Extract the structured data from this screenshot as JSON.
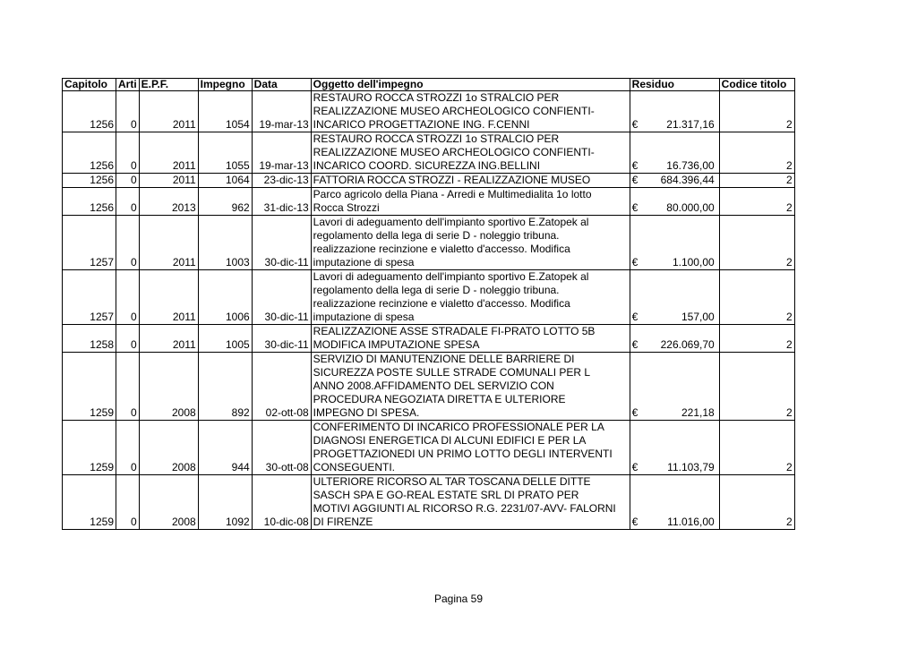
{
  "headers": [
    "Capitolo",
    "Arti",
    "E.P.F.",
    "Impegno",
    "Data",
    "Oggetto dell'impegno",
    "Residuo",
    "Codice titolo"
  ],
  "currency_symbol": "€",
  "rows": [
    {
      "capitolo": "1256",
      "arti": "0",
      "epf": "2011",
      "impegno": "1054",
      "data": "19-mar-13",
      "oggetto": [
        "RESTAURO ROCCA STROZZI 1o STRALCIO PER",
        "REALIZZAZIONE MUSEO ARCHEOLOGICO CONFIENTI-",
        "INCARICO PROGETTAZIONE ING. F.CENNI"
      ],
      "residuo": "21.317,16",
      "codice": "2"
    },
    {
      "capitolo": "1256",
      "arti": "0",
      "epf": "2011",
      "impegno": "1055",
      "data": "19-mar-13",
      "oggetto": [
        "RESTAURO ROCCA STROZZI 1o STRALCIO PER",
        "REALIZZAZIONE MUSEO ARCHEOLOGICO CONFIENTI-",
        "INCARICO COORD. SICUREZZA ING.BELLINI"
      ],
      "residuo": "16.736,00",
      "codice": "2"
    },
    {
      "capitolo": "1256",
      "arti": "0",
      "epf": "2011",
      "impegno": "1064",
      "data": "23-dic-13",
      "oggetto": [
        "FATTORIA ROCCA STROZZI - REALIZZAZIONE MUSEO"
      ],
      "residuo": "684.396,44",
      "codice": "2"
    },
    {
      "capitolo": "1256",
      "arti": "0",
      "epf": "2013",
      "impegno": "962",
      "data": "31-dic-13",
      "oggetto": [
        "Parco agricolo della Piana - Arredi e Multimedialita 1o lotto",
        "Rocca Strozzi"
      ],
      "residuo": "80.000,00",
      "codice": "2"
    },
    {
      "capitolo": "1257",
      "arti": "0",
      "epf": "2011",
      "impegno": "1003",
      "data": "30-dic-11",
      "oggetto": [
        "Lavori di adeguamento dell'impianto sportivo E.Zatopek al",
        "regolamento della lega di serie D - noleggio tribuna.",
        "realizzazione recinzione e vialetto d'accesso. Modifica",
        "imputazione di spesa"
      ],
      "residuo": "1.100,00",
      "codice": "2"
    },
    {
      "capitolo": "1257",
      "arti": "0",
      "epf": "2011",
      "impegno": "1006",
      "data": "30-dic-11",
      "oggetto": [
        "Lavori di adeguamento dell'impianto sportivo E.Zatopek al",
        "regolamento della lega di serie D - noleggio tribuna.",
        "realizzazione recinzione e vialetto d'accesso. Modifica",
        "imputazione di spesa"
      ],
      "residuo": "157,00",
      "codice": "2"
    },
    {
      "capitolo": "1258",
      "arti": "0",
      "epf": "2011",
      "impegno": "1005",
      "data": "30-dic-11",
      "oggetto": [
        "REALIZZAZIONE ASSE STRADALE FI-PRATO LOTTO 5B",
        "MODIFICA IMPUTAZIONE SPESA"
      ],
      "residuo": "226.069,70",
      "codice": "2"
    },
    {
      "capitolo": "1259",
      "arti": "0",
      "epf": "2008",
      "impegno": "892",
      "data": "02-ott-08",
      "oggetto": [
        "SERVIZIO DI MANUTENZIONE DELLE BARRIERE DI",
        "SICUREZZA POSTE SULLE STRADE COMUNALI PER L",
        "ANNO 2008.AFFIDAMENTO DEL SERVIZIO CON",
        "PROCEDURA NEGOZIATA DIRETTA E ULTERIORE",
        "IMPEGNO DI SPESA."
      ],
      "residuo": "221,18",
      "codice": "2"
    },
    {
      "capitolo": "1259",
      "arti": "0",
      "epf": "2008",
      "impegno": "944",
      "data": "30-ott-08",
      "oggetto": [
        "CONFERIMENTO DI INCARICO PROFESSIONALE PER LA",
        "DIAGNOSI ENERGETICA DI ALCUNI EDIFICI E PER LA",
        "PROGETTAZIONEDI UN PRIMO LOTTO DEGLI INTERVENTI",
        "CONSEGUENTI."
      ],
      "residuo": "11.103,79",
      "codice": "2"
    },
    {
      "capitolo": "1259",
      "arti": "0",
      "epf": "2008",
      "impegno": "1092",
      "data": "10-dic-08",
      "oggetto": [
        "ULTERIORE RICORSO AL TAR TOSCANA DELLE DITTE",
        "SASCH SPA E GO-REAL ESTATE SRL DI PRATO PER",
        "MOTIVI AGGIUNTI AL RICORSO R.G. 2231/07-AVV- FALORNI",
        "DI FIRENZE"
      ],
      "residuo": "11.016,00",
      "codice": "2"
    }
  ],
  "footer": "Pagina 59"
}
